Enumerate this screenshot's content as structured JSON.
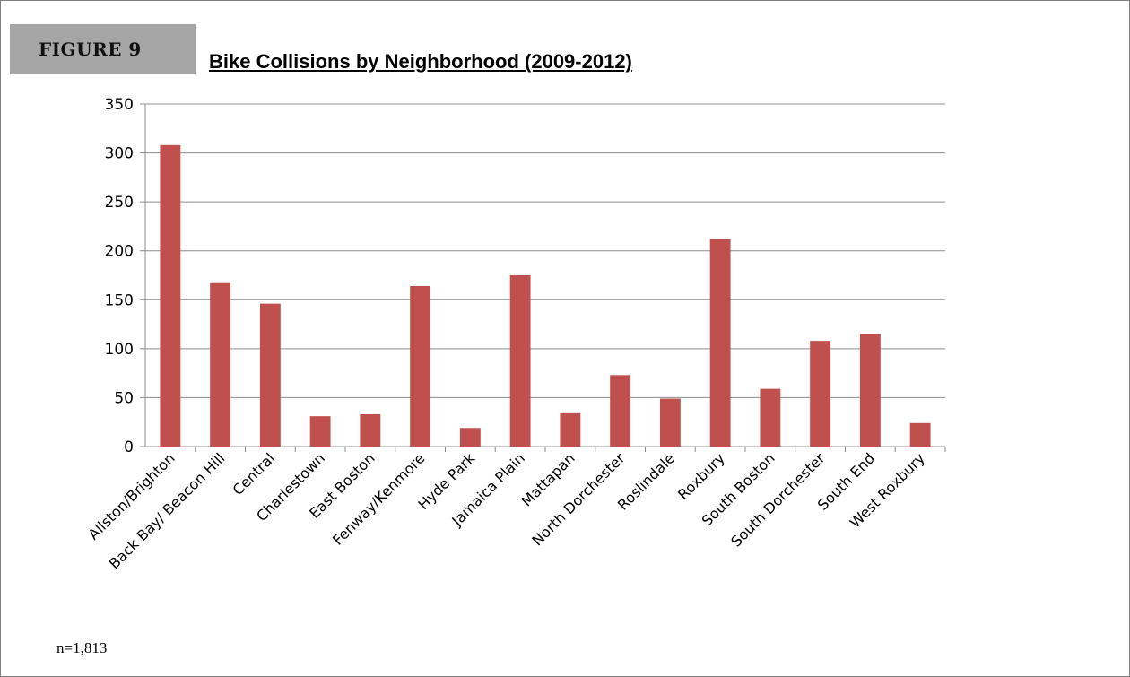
{
  "figure_label": "FIGURE 9",
  "footnote": "n=1,813",
  "chart_data": {
    "type": "bar",
    "title": "Bike Collisions by Neighborhood  (2009-2012)",
    "xlabel": "",
    "ylabel": "",
    "categories": [
      "Allston/Brighton",
      "Back Bay/ Beacon Hill",
      "Central",
      "Charlestown",
      "East Boston",
      "Fenway/Kenmore",
      "Hyde Park",
      "Jamaica Plain",
      "Mattapan",
      "North Dorchester",
      "Roslindale",
      "Roxbury",
      "South Boston",
      "South Dorchester",
      "South End",
      "West Roxbury"
    ],
    "values": [
      308,
      167,
      146,
      31,
      33,
      164,
      19,
      175,
      34,
      73,
      49,
      212,
      59,
      108,
      115,
      24
    ],
    "ylim": [
      0,
      350
    ],
    "yticks": [
      0,
      50,
      100,
      150,
      200,
      250,
      300,
      350
    ],
    "grid": true,
    "legend": "none",
    "bar_color": "#c0504d"
  }
}
